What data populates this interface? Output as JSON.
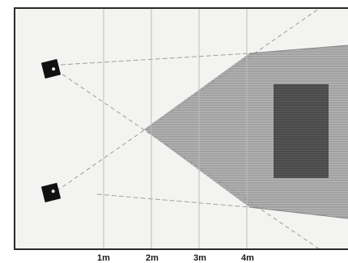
{
  "diagram": {
    "distance_markers": [
      "1m",
      "2m",
      "3m",
      "4m"
    ],
    "colors": {
      "background": "#ffffff",
      "panel": "#f2f2f0",
      "frame": "#2a2a2a",
      "gridlines": "#b8b8b8",
      "coverage_zone": "#a9a9a9",
      "coverage_hatch": "#8c8c8c",
      "target_zone": "#4f4f4f",
      "speakers": "#111111",
      "sight_lines": "#9a9a9a"
    },
    "icons": [
      "speaker-icon",
      "speaker-icon"
    ]
  }
}
